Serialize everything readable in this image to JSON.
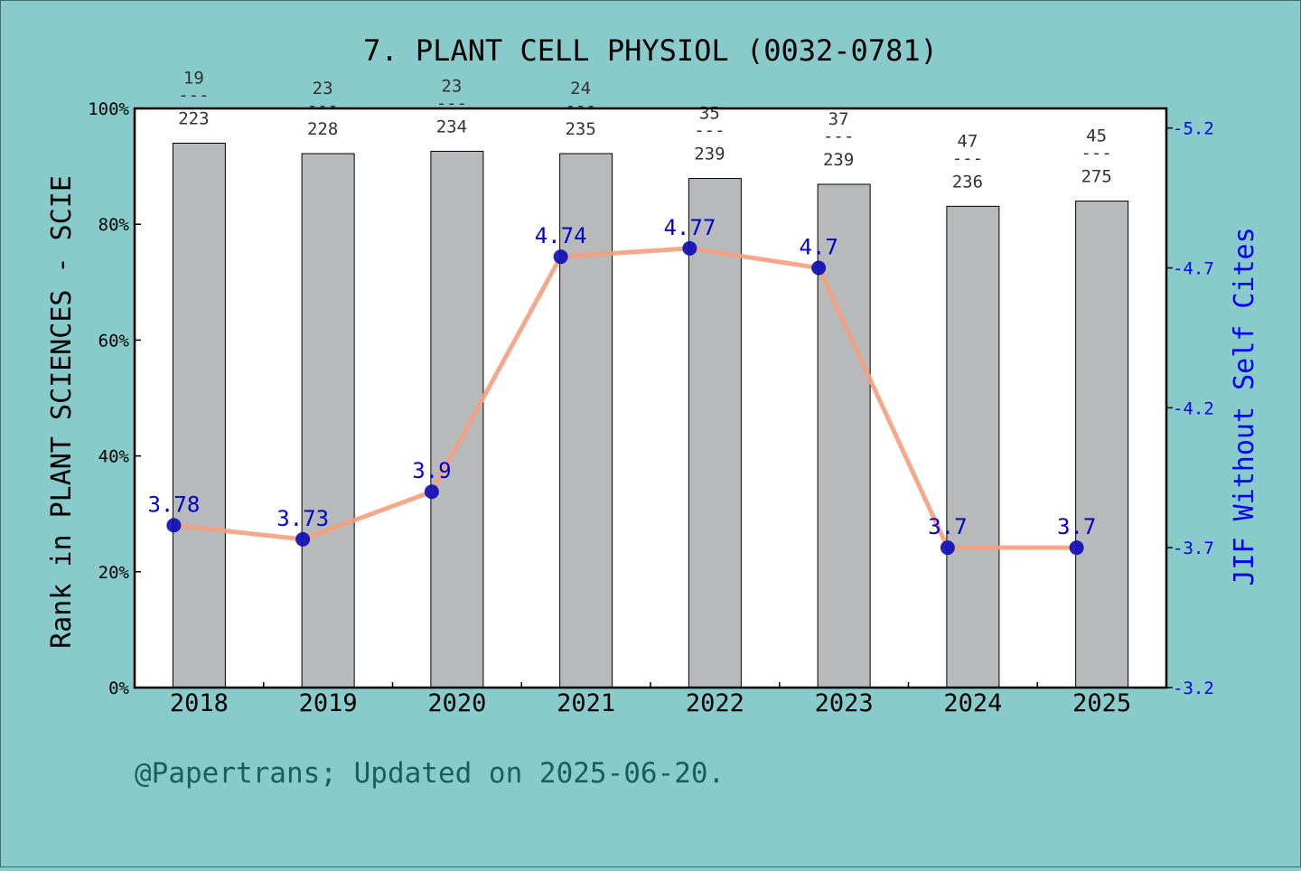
{
  "title": "7. PLANT CELL PHYSIOL (0032-0781)",
  "footer": "@Papertrans; Updated on 2025-06-20.",
  "colors": {
    "background": "#88cbca",
    "plot_bg": "#ffffff",
    "bar": "#b8b9bb",
    "line": "#f4a07e",
    "marker": "#0a0ab9",
    "jif_text": "#0000cc",
    "right_axis": "#0000ff",
    "footer_text": "#1b5e5b"
  },
  "chart_data": {
    "type": "bar",
    "categories": [
      "2018",
      "2019",
      "2020",
      "2021",
      "2022",
      "2023",
      "2024",
      "2025"
    ],
    "ylabel": "Rank in PLANT SCIENCES - SCIE",
    "y2label": "JIF Without Self Cites",
    "ylim": [
      0,
      100
    ],
    "y_ticks": [
      "0%",
      "20%",
      "40%",
      "60%",
      "80%",
      "100%"
    ],
    "y2lim": [
      3.2,
      5.27
    ],
    "y2_ticks": [
      "3.2",
      "3.7",
      "4.2",
      "4.7",
      "5.2"
    ],
    "y2_tick_values": [
      3.2,
      3.7,
      4.2,
      4.7,
      5.2
    ],
    "grid": false,
    "legend": "none",
    "bars": {
      "rank": [
        19,
        23,
        23,
        24,
        35,
        37,
        47,
        45
      ],
      "total": [
        223,
        228,
        234,
        235,
        239,
        239,
        236,
        275
      ],
      "percent": [
        94.0,
        92.2,
        92.6,
        92.2,
        87.9,
        86.9,
        83.1,
        84.0
      ]
    },
    "line": {
      "values": [
        3.78,
        3.73,
        3.9,
        4.74,
        4.77,
        4.7,
        3.7,
        3.7
      ],
      "labels": [
        "3.78",
        "3.73",
        "3.9",
        "4.74",
        "4.77",
        "4.7",
        "3.7",
        "3.7"
      ]
    },
    "bar_label_separator": "---"
  }
}
